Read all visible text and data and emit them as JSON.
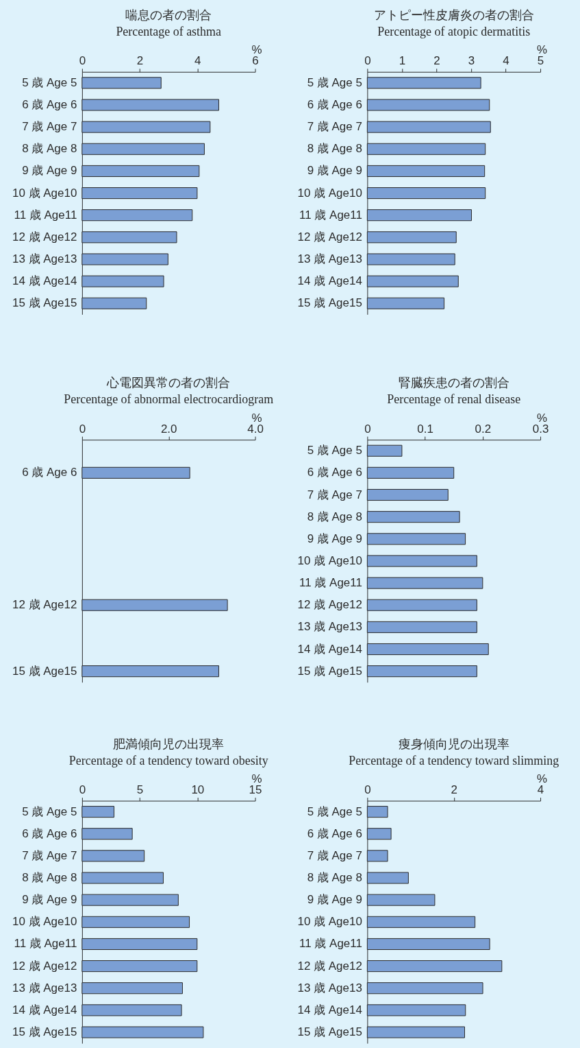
{
  "chart_data": [
    {
      "type": "bar",
      "orientation": "horizontal",
      "title": "喘息の者の割合",
      "subtitle": "Percentage of asthma",
      "xlabel": "%",
      "categories": [
        "5 歳 Age 5",
        "6 歳 Age 6",
        "7 歳 Age 7",
        "8 歳 Age 8",
        "9 歳 Age 9",
        "10 歳 Age10",
        "11 歳 Age11",
        "12 歳 Age12",
        "13 歳 Age13",
        "14 歳 Age14",
        "15 歳 Age15"
      ],
      "values": [
        2.74,
        4.74,
        4.44,
        4.24,
        4.06,
        3.99,
        3.82,
        3.28,
        2.98,
        2.83,
        2.23
      ],
      "color": "#7b9fd4",
      "xlim": [
        0,
        6
      ],
      "xticks": [
        0,
        2,
        4,
        6
      ]
    },
    {
      "type": "bar",
      "orientation": "horizontal",
      "title": "アトピー性皮膚炎の者の割合",
      "subtitle": "Percentage of atopic dermatitis",
      "xlabel": "%",
      "categories": [
        "5 歳 Age 5",
        "6 歳 Age 6",
        "7 歳 Age 7",
        "8 歳 Age 8",
        "9 歳 Age 9",
        "10 歳 Age10",
        "11 歳 Age11",
        "12 歳 Age12",
        "13 歳 Age13",
        "14 歳 Age14",
        "15 歳 Age15"
      ],
      "values": [
        3.28,
        3.53,
        3.56,
        3.41,
        3.39,
        3.41,
        3.01,
        2.57,
        2.53,
        2.63,
        2.22
      ],
      "color": "#7b9fd4",
      "xlim": [
        0,
        5
      ],
      "xticks": [
        0,
        1,
        2,
        3,
        4,
        5
      ]
    },
    {
      "type": "bar",
      "orientation": "horizontal",
      "title": "心電図異常の者の割合",
      "subtitle": "Percentage of abnormal electrocardiogram",
      "xlabel": "%",
      "categories": [
        null,
        "6 歳 Age 6",
        null,
        null,
        null,
        null,
        null,
        "12 歳 Age12",
        null,
        null,
        "15 歳 Age15"
      ],
      "values": [
        null,
        2.49,
        null,
        null,
        null,
        null,
        null,
        3.36,
        null,
        null,
        3.16
      ],
      "color": "#7b9fd4",
      "xlim": [
        0,
        4
      ],
      "xticks": [
        0,
        {
          "value": 2,
          "label": "2.0"
        },
        {
          "value": 4,
          "label": "4.0"
        }
      ]
    },
    {
      "type": "bar",
      "orientation": "horizontal",
      "title": "腎臓疾患の者の割合",
      "subtitle": "Percentage of renal disease",
      "xlabel": "%",
      "categories": [
        "5 歳 Age 5",
        "6 歳 Age 6",
        "7 歳 Age 7",
        "8 歳 Age 8",
        "9 歳 Age 9",
        "10 歳 Age10",
        "11 歳 Age11",
        "12 歳 Age12",
        "13 歳 Age13",
        "14 歳 Age14",
        "15 歳 Age15"
      ],
      "values": [
        0.06,
        0.15,
        0.14,
        0.16,
        0.17,
        0.19,
        0.2,
        0.19,
        0.19,
        0.21,
        0.19
      ],
      "color": "#7b9fd4",
      "xlim": [
        0,
        0.3
      ],
      "xticks": [
        0,
        0.1,
        0.2,
        0.3
      ]
    },
    {
      "type": "bar",
      "orientation": "horizontal",
      "title": "肥満傾向児の出現率",
      "subtitle": "Percentage of a tendency toward obesity",
      "xlabel": "%",
      "categories": [
        "5 歳 Age 5",
        "6 歳 Age 6",
        "7 歳 Age 7",
        "8 歳 Age 8",
        "9 歳 Age 9",
        "10 歳 Age10",
        "11 歳 Age11",
        "12 歳 Age12",
        "13 歳 Age13",
        "14 歳 Age14",
        "15 歳 Age15"
      ],
      "values": [
        2.77,
        4.35,
        5.39,
        7.04,
        8.34,
        9.3,
        9.97,
        9.97,
        8.7,
        8.62,
        10.51
      ],
      "color": "#7b9fd4",
      "xlim": [
        0,
        15
      ],
      "xticks": [
        0,
        5,
        10,
        15
      ]
    },
    {
      "type": "bar",
      "orientation": "horizontal",
      "title": "痩身傾向児の出現率",
      "subtitle": "Percentage of a tendency toward slimming",
      "xlabel": "%",
      "categories": [
        "5 歳 Age 5",
        "6 歳 Age 6",
        "7 歳 Age 7",
        "8 歳 Age 8",
        "9 歳 Age 9",
        "10 歳 Age10",
        "11 歳 Age11",
        "12 歳 Age12",
        "13 歳 Age13",
        "14 歳 Age14",
        "15 歳 Age15"
      ],
      "values": [
        0.47,
        0.55,
        0.47,
        0.95,
        1.56,
        2.49,
        2.83,
        3.11,
        2.67,
        2.27,
        2.25
      ],
      "color": "#7b9fd4",
      "xlim": [
        0,
        4
      ],
      "xticks": [
        0,
        2,
        4
      ]
    }
  ]
}
